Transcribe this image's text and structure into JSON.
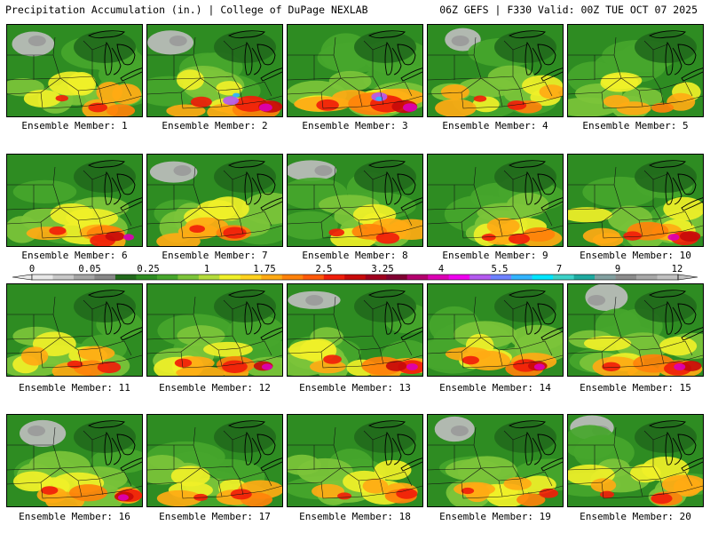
{
  "header": {
    "title_left": "Precipitation Accumulation (in.) | College of DuPage NEXLAB",
    "title_right": "06Z GEFS | F330 Valid: 00Z TUE OCT 07 2025"
  },
  "colorbar": {
    "tick_labels": [
      "0",
      "0.05",
      "0.25",
      "1",
      "1.75",
      "2.5",
      "3.25",
      "4",
      "5.5",
      "7",
      "9",
      "12"
    ],
    "colors": [
      "#e8e8e8",
      "#c8c8c8",
      "#a6a6a6",
      "#878787",
      "#226a1c",
      "#2e8c22",
      "#46a62c",
      "#7cc43a",
      "#b4dc3c",
      "#f0f028",
      "#ffd21e",
      "#ffaa14",
      "#ff820a",
      "#ff5a0a",
      "#f01e0a",
      "#c80a0a",
      "#a0001e",
      "#800032",
      "#b4006e",
      "#dc00b4",
      "#f000f0",
      "#b45af0",
      "#6e82ff",
      "#32b4ff",
      "#00e6ff",
      "#3cd2c8",
      "#1eaaa0",
      "#82a0a0",
      "#8c8c8c",
      "#a8a8a8",
      "#c0c0c0"
    ]
  },
  "members": [
    {
      "label": "Ensemble Member: 1"
    },
    {
      "label": "Ensemble Member: 2"
    },
    {
      "label": "Ensemble Member: 3"
    },
    {
      "label": "Ensemble Member: 4"
    },
    {
      "label": "Ensemble Member: 5"
    },
    {
      "label": "Ensemble Member: 6"
    },
    {
      "label": "Ensemble Member: 7"
    },
    {
      "label": "Ensemble Member: 8"
    },
    {
      "label": "Ensemble Member: 9"
    },
    {
      "label": "Ensemble Member: 10"
    },
    {
      "label": "Ensemble Member: 11"
    },
    {
      "label": "Ensemble Member: 12"
    },
    {
      "label": "Ensemble Member: 13"
    },
    {
      "label": "Ensemble Member: 14"
    },
    {
      "label": "Ensemble Member: 15"
    },
    {
      "label": "Ensemble Member: 16"
    },
    {
      "label": "Ensemble Member: 17"
    },
    {
      "label": "Ensemble Member: 18"
    },
    {
      "label": "Ensemble Member: 19"
    },
    {
      "label": "Ensemble Member: 20"
    }
  ]
}
